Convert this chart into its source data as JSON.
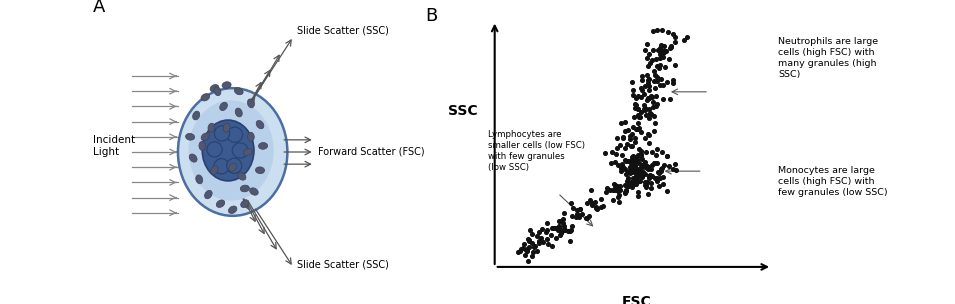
{
  "panel_A_label": "A",
  "panel_B_label": "B",
  "bg_color": "#ffffff",
  "text_color": "#000000",
  "scatter_dot_color": "#111111",
  "incident_label": "Incident\nLight",
  "fsc_label": "Forward Scatter (FSC)",
  "ssc_top_label": "Slide Scatter (SSC)",
  "ssc_bot_label": "Slide Scatter (SSC)",
  "axis_fsc_label": "FSC",
  "axis_ssc_label": "SSC",
  "neutrophil_label": "Neutrophils are large\ncells (high FSC) with\nmany granules (high\nSSC)",
  "monocyte_label": "Monocytes are large\ncells (high FSC) with\nfew granules (low SSC)",
  "lymphocyte_label": "Lymphocytes are\nsmaller cells (low FSC)\nwith few granules\n(low SSC)"
}
